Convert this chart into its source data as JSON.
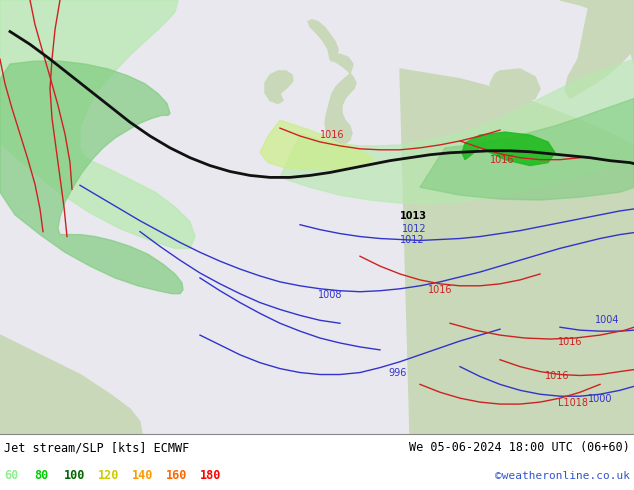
{
  "title_left": "Jet stream/SLP [kts] ECMWF",
  "title_right": "We 05-06-2024 18:00 UTC (06+60)",
  "copyright": "©weatheronline.co.uk",
  "legend_values": [
    "60",
    "80",
    "100",
    "120",
    "140",
    "160",
    "180"
  ],
  "legend_colors": [
    "#90ee90",
    "#00cc00",
    "#006600",
    "#cccc00",
    "#ff9900",
    "#ff6600",
    "#ff0000"
  ],
  "ocean_color": "#e8e8ee",
  "land_color": "#c8d8b8",
  "land_color2": "#d4e4c4",
  "slp_blue": "#3333cc",
  "slp_red": "#cc2222",
  "jet_black": "#111111",
  "jet_light_green": "#b8e8b0",
  "jet_med_green": "#80cc80",
  "jet_dark_green": "#44aa44",
  "jet_bright_green": "#22bb22",
  "jet_yellow_green": "#ccee88",
  "figsize": [
    6.34,
    4.9
  ],
  "dpi": 100
}
